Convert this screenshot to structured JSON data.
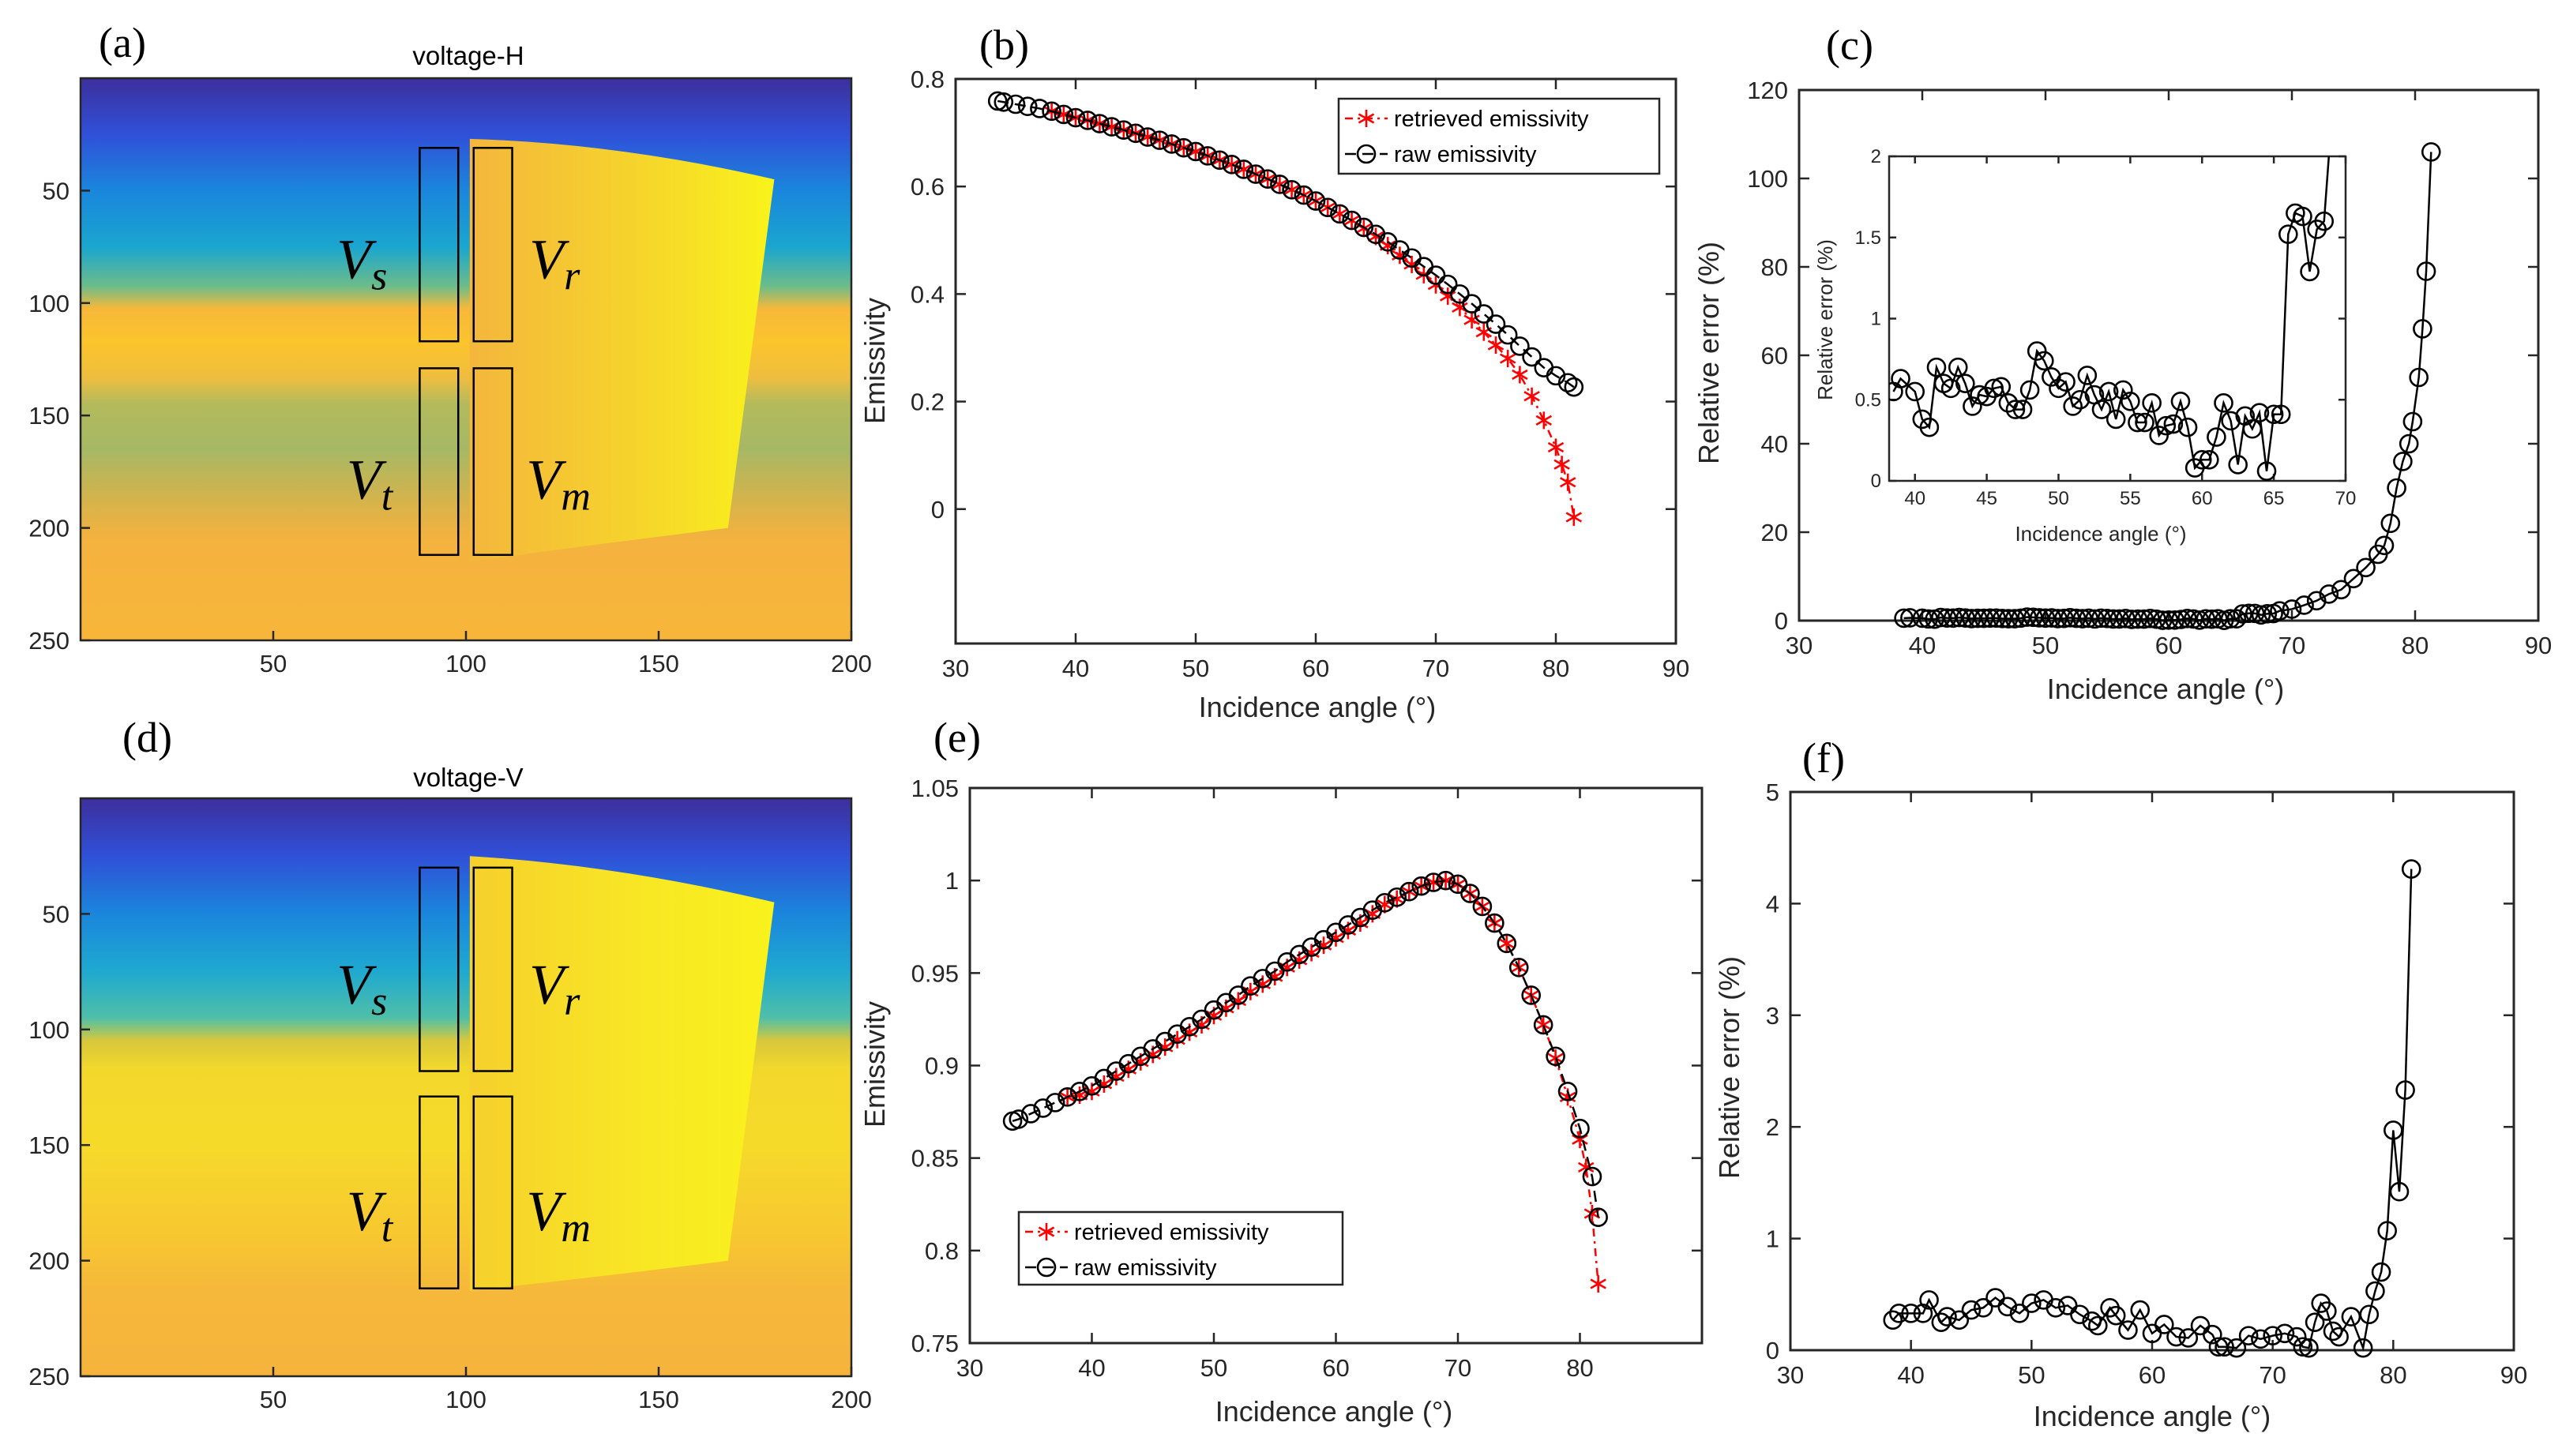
{
  "panel_labels": [
    "(a)",
    "(b)",
    "(c)",
    "(d)",
    "(e)",
    "(f)"
  ],
  "chart_data": [
    {
      "id": "a",
      "type": "heatmap",
      "title": "voltage-H",
      "xlim": [
        0,
        200
      ],
      "ylim": [
        0,
        250
      ],
      "xticks": [
        50,
        100,
        150,
        200
      ],
      "yticks": [
        50,
        100,
        150,
        200,
        250
      ],
      "colormap": "parula",
      "regions": [
        {
          "name": "V",
          "sub": "s",
          "x": [
            88,
            98
          ],
          "y": [
            31,
            117
          ]
        },
        {
          "name": "V",
          "sub": "r",
          "x": [
            102,
            112
          ],
          "y": [
            31,
            117
          ]
        },
        {
          "name": "V",
          "sub": "t",
          "x": [
            88,
            98
          ],
          "y": [
            129,
            212
          ]
        },
        {
          "name": "V",
          "sub": "m",
          "x": [
            102,
            112
          ],
          "y": [
            129,
            212
          ]
        }
      ]
    },
    {
      "id": "b",
      "type": "line",
      "xlabel": "Incidence angle (°)",
      "ylabel": "Emissivity",
      "xlim": [
        30,
        90
      ],
      "ylim": [
        -0.25,
        0.8
      ],
      "xticks": [
        30,
        40,
        50,
        60,
        70,
        80,
        90
      ],
      "yticks": [
        "0",
        "0.2",
        "0.4",
        "0.6",
        "0.8"
      ],
      "legend_position": "top-right",
      "series": [
        {
          "name": "retrieved  emissivity",
          "color": "#ff0000",
          "marker": "star",
          "line": "dash-dot",
          "x": [
            38,
            39,
            40,
            41,
            42,
            43,
            44,
            45,
            46,
            47,
            48,
            49,
            50,
            51,
            52,
            53,
            54,
            55,
            56,
            57,
            58,
            59,
            60,
            61,
            62,
            63,
            64,
            65,
            66,
            67,
            68,
            69,
            70,
            71,
            72,
            73,
            74,
            75,
            76,
            77,
            78,
            79,
            80,
            80.5,
            81,
            81.5
          ],
          "y": [
            0.74,
            0.734,
            0.728,
            0.723,
            0.717,
            0.711,
            0.705,
            0.699,
            0.692,
            0.686,
            0.679,
            0.672,
            0.665,
            0.657,
            0.649,
            0.641,
            0.632,
            0.623,
            0.614,
            0.604,
            0.594,
            0.584,
            0.573,
            0.561,
            0.549,
            0.537,
            0.522,
            0.507,
            0.49,
            0.472,
            0.455,
            0.436,
            0.417,
            0.396,
            0.375,
            0.352,
            0.329,
            0.305,
            0.28,
            0.25,
            0.21,
            0.165,
            0.115,
            0.083,
            0.05,
            -0.015
          ]
        },
        {
          "name": "raw emissivity",
          "color": "#000000",
          "marker": "circle",
          "line": "dashed",
          "x": [
            33.5,
            34,
            35,
            36,
            37,
            38,
            39,
            40,
            41,
            42,
            43,
            44,
            45,
            46,
            47,
            48,
            49,
            50,
            51,
            52,
            53,
            54,
            55,
            56,
            57,
            58,
            59,
            60,
            61,
            62,
            63,
            64,
            65,
            66,
            67,
            68,
            69,
            70,
            71,
            72,
            73,
            74,
            75,
            76,
            77,
            78,
            79,
            80,
            81,
            81.5
          ],
          "y": [
            0.759,
            0.757,
            0.753,
            0.749,
            0.745,
            0.74,
            0.734,
            0.728,
            0.723,
            0.717,
            0.711,
            0.705,
            0.699,
            0.692,
            0.686,
            0.679,
            0.672,
            0.665,
            0.657,
            0.649,
            0.641,
            0.632,
            0.623,
            0.614,
            0.604,
            0.594,
            0.584,
            0.573,
            0.561,
            0.549,
            0.537,
            0.524,
            0.511,
            0.497,
            0.482,
            0.467,
            0.451,
            0.435,
            0.418,
            0.4,
            0.382,
            0.363,
            0.344,
            0.324,
            0.303,
            0.283,
            0.263,
            0.248,
            0.235,
            0.227
          ]
        }
      ]
    },
    {
      "id": "c",
      "type": "line",
      "xlabel": "Incidence angle (°)",
      "ylabel": "Relative  error (%)",
      "xlim": [
        30,
        90
      ],
      "ylim": [
        0,
        120
      ],
      "xticks": [
        30,
        40,
        50,
        60,
        70,
        80,
        90
      ],
      "yticks": [
        "0",
        "20",
        "40",
        "60",
        "80",
        "100",
        "120"
      ],
      "series": [
        {
          "name": "relative error",
          "color": "#000000",
          "marker": "circle",
          "line": "solid",
          "x": [
            38.5,
            39,
            40,
            40.5,
            41,
            41.5,
            42,
            42.5,
            43,
            43.5,
            44,
            44.5,
            45,
            45.5,
            46,
            46.5,
            47,
            47.5,
            48,
            48.5,
            49,
            49.5,
            50,
            50.5,
            51,
            51.5,
            52,
            52.5,
            53,
            53.5,
            54,
            54.5,
            55,
            55.5,
            56,
            56.5,
            57,
            57.5,
            58,
            58.5,
            59,
            59.5,
            60,
            60.5,
            61,
            61.5,
            62,
            62.5,
            63,
            63.5,
            64,
            64.5,
            65,
            65.5,
            66,
            66.5,
            67,
            67.5,
            68,
            68.5,
            69,
            70,
            71,
            72,
            73,
            74,
            75,
            76,
            77,
            77.5,
            78,
            78.5,
            79,
            79.5,
            79.8,
            80.3,
            80.6,
            80.9,
            81.3
          ],
          "y": [
            0.55,
            0.63,
            0.55,
            0.38,
            0.33,
            0.7,
            0.6,
            0.57,
            0.7,
            0.6,
            0.46,
            0.53,
            0.52,
            0.57,
            0.58,
            0.48,
            0.44,
            0.44,
            0.56,
            0.8,
            0.74,
            0.64,
            0.57,
            0.61,
            0.46,
            0.5,
            0.65,
            0.53,
            0.44,
            0.55,
            0.38,
            0.56,
            0.49,
            0.36,
            0.36,
            0.48,
            0.28,
            0.34,
            0.35,
            0.49,
            0.33,
            0.08,
            0.13,
            0.13,
            0.27,
            0.48,
            0.37,
            0.1,
            0.4,
            0.32,
            0.42,
            0.06,
            0.41,
            0.41,
            1.52,
            1.65,
            1.63,
            1.29,
            1.55,
            1.6,
            2.2,
            2.6,
            3.5,
            4.5,
            6,
            7,
            9.5,
            12,
            15,
            17,
            22,
            30,
            36,
            40,
            45,
            55,
            66,
            79,
            106
          ]
        }
      ],
      "inset": {
        "xlabel": "Incidence angle (°)",
        "ylabel": "Relative  error (%)",
        "xlim": [
          38.2,
          70
        ],
        "ylim": [
          0,
          2
        ],
        "xticks": [
          40,
          45,
          50,
          55,
          60,
          65,
          70
        ],
        "yticks": [
          "0",
          "0.5",
          "1",
          "1.5",
          "2"
        ]
      }
    },
    {
      "id": "d",
      "type": "heatmap",
      "title": "voltage-V",
      "xlim": [
        0,
        200
      ],
      "ylim": [
        0,
        250
      ],
      "xticks": [
        50,
        100,
        150,
        200
      ],
      "yticks": [
        50,
        100,
        150,
        200,
        250
      ],
      "colormap": "parula",
      "regions": [
        {
          "name": "V",
          "sub": "s",
          "x": [
            88,
            98
          ],
          "y": [
            30,
            118
          ]
        },
        {
          "name": "V",
          "sub": "r",
          "x": [
            102,
            112
          ],
          "y": [
            30,
            118
          ]
        },
        {
          "name": "V",
          "sub": "t",
          "x": [
            88,
            98
          ],
          "y": [
            129,
            212
          ]
        },
        {
          "name": "V",
          "sub": "m",
          "x": [
            102,
            112
          ],
          "y": [
            129,
            212
          ]
        }
      ]
    },
    {
      "id": "e",
      "type": "line",
      "xlabel": "Incidence angle (°)",
      "ylabel": "Emissivity",
      "xlim": [
        30,
        90
      ],
      "ylim": [
        0.75,
        1.05
      ],
      "xticks": [
        30,
        40,
        50,
        60,
        70,
        80
      ],
      "yticks": [
        "0.75",
        "0.8",
        "0.85",
        "0.9",
        "0.95",
        "1",
        "1.05"
      ],
      "legend_position": "bottom-left",
      "series": [
        {
          "name": "retrieved  emissivity",
          "color": "#ff0000",
          "marker": "star",
          "line": "dash-dot",
          "x": [
            38,
            39,
            40,
            41,
            42,
            43,
            44,
            45,
            46,
            47,
            48,
            49,
            50,
            51,
            52,
            53,
            54,
            55,
            56,
            57,
            58,
            59,
            60,
            61,
            62,
            63,
            64,
            65,
            66,
            67,
            68,
            69,
            70,
            71,
            72,
            73,
            74,
            75,
            76,
            77,
            78,
            79,
            80,
            80.5,
            81,
            81.5
          ],
          "y": [
            0.883,
            0.884,
            0.886,
            0.89,
            0.894,
            0.898,
            0.902,
            0.906,
            0.91,
            0.914,
            0.918,
            0.922,
            0.927,
            0.931,
            0.935,
            0.94,
            0.944,
            0.948,
            0.953,
            0.957,
            0.961,
            0.965,
            0.969,
            0.973,
            0.977,
            0.982,
            0.987,
            0.99,
            0.994,
            0.997,
            0.999,
            1.0,
            0.998,
            0.993,
            0.986,
            0.977,
            0.966,
            0.953,
            0.938,
            0.922,
            0.904,
            0.883,
            0.86,
            0.845,
            0.82,
            0.782
          ]
        },
        {
          "name": "raw emissivity",
          "color": "#000000",
          "marker": "circle",
          "line": "dashed",
          "x": [
            33.5,
            34,
            35,
            36,
            37,
            38,
            39,
            40,
            41,
            42,
            43,
            44,
            45,
            46,
            47,
            48,
            49,
            50,
            51,
            52,
            53,
            54,
            55,
            56,
            57,
            58,
            59,
            60,
            61,
            62,
            63,
            64,
            65,
            66,
            67,
            68,
            69,
            70,
            71,
            72,
            73,
            74,
            75,
            76,
            77,
            78,
            79,
            80,
            81,
            81.5
          ],
          "y": [
            0.87,
            0.871,
            0.874,
            0.877,
            0.88,
            0.883,
            0.886,
            0.889,
            0.893,
            0.897,
            0.901,
            0.905,
            0.909,
            0.913,
            0.917,
            0.921,
            0.925,
            0.93,
            0.934,
            0.938,
            0.943,
            0.947,
            0.951,
            0.956,
            0.96,
            0.964,
            0.968,
            0.972,
            0.976,
            0.98,
            0.984,
            0.988,
            0.991,
            0.994,
            0.997,
            0.999,
            1.0,
            0.998,
            0.993,
            0.986,
            0.977,
            0.966,
            0.953,
            0.938,
            0.922,
            0.905,
            0.886,
            0.866,
            0.84,
            0.818
          ]
        }
      ]
    },
    {
      "id": "f",
      "type": "line",
      "xlabel": "Incidence angle (°)",
      "ylabel": "Relative  error (%)",
      "xlim": [
        30,
        90
      ],
      "ylim": [
        0,
        5
      ],
      "xticks": [
        30,
        40,
        50,
        60,
        70,
        80,
        90
      ],
      "yticks": [
        "0",
        "1",
        "2",
        "3",
        "4",
        "5"
      ],
      "series": [
        {
          "name": "relative error",
          "color": "#000000",
          "marker": "circle",
          "line": "solid",
          "x": [
            38.5,
            39,
            40,
            41,
            41.5,
            42.5,
            43,
            44,
            45,
            46,
            47,
            48,
            49,
            50,
            51,
            52,
            53,
            54,
            55,
            55.5,
            56.5,
            57,
            58,
            59,
            60,
            61,
            62,
            63,
            64,
            65,
            65.5,
            66,
            67,
            68,
            69,
            70,
            71,
            72,
            72.5,
            73,
            73.5,
            74,
            74.5,
            75,
            75.5,
            76.5,
            77.5,
            78,
            78.5,
            79,
            79.5,
            80,
            80.5,
            81,
            81.5
          ],
          "y": [
            0.27,
            0.33,
            0.33,
            0.33,
            0.45,
            0.25,
            0.3,
            0.27,
            0.36,
            0.38,
            0.47,
            0.39,
            0.33,
            0.42,
            0.45,
            0.38,
            0.4,
            0.32,
            0.26,
            0.22,
            0.38,
            0.31,
            0.18,
            0.36,
            0.15,
            0.23,
            0.12,
            0.11,
            0.22,
            0.14,
            0.03,
            0.03,
            0.02,
            0.13,
            0.1,
            0.13,
            0.15,
            0.12,
            0.03,
            0.02,
            0.25,
            0.42,
            0.35,
            0.17,
            0.12,
            0.3,
            0.02,
            0.32,
            0.53,
            0.7,
            1.07,
            1.97,
            1.42,
            2.33,
            4.31
          ]
        }
      ]
    }
  ]
}
